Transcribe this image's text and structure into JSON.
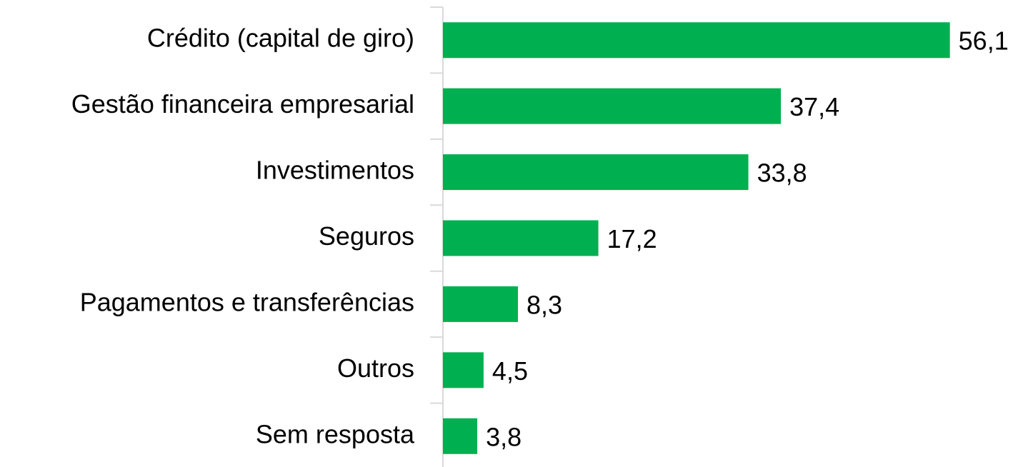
{
  "chart_data": {
    "type": "barh",
    "categories": [
      "Crédito (capital de giro)",
      "Gestão financeira empresarial",
      "Investimentos",
      "Seguros",
      "Pagamentos e transferências",
      "Outros",
      "Sem resposta"
    ],
    "values": [
      56.1,
      37.4,
      33.8,
      17.2,
      8.3,
      4.5,
      3.8
    ],
    "value_labels": [
      "56,1",
      "37,4",
      "33,8",
      "17,2",
      "8,3",
      "4,5",
      "3,8"
    ],
    "color": "#00b050",
    "xlim": [
      0,
      60
    ]
  }
}
